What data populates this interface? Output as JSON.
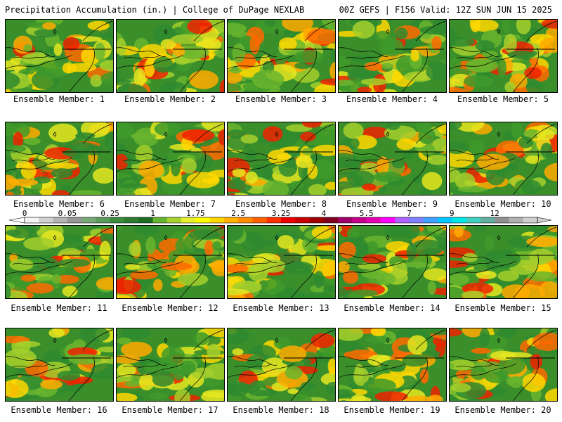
{
  "header": {
    "title_left": "Precipitation Accumulation (in.) | College of DuPage NEXLAB",
    "title_right": "00Z GEFS | F156 Valid: 12Z SUN JUN 15 2025"
  },
  "members": [
    {
      "label": "Ensemble Member: 1"
    },
    {
      "label": "Ensemble Member: 2"
    },
    {
      "label": "Ensemble Member: 3"
    },
    {
      "label": "Ensemble Member: 4"
    },
    {
      "label": "Ensemble Member: 5"
    },
    {
      "label": "Ensemble Member: 6"
    },
    {
      "label": "Ensemble Member: 7"
    },
    {
      "label": "Ensemble Member: 8"
    },
    {
      "label": "Ensemble Member: 9"
    },
    {
      "label": "Ensemble Member: 10"
    },
    {
      "label": "Ensemble Member: 11"
    },
    {
      "label": "Ensemble Member: 12"
    },
    {
      "label": "Ensemble Member: 13"
    },
    {
      "label": "Ensemble Member: 14"
    },
    {
      "label": "Ensemble Member: 15"
    },
    {
      "label": "Ensemble Member: 16"
    },
    {
      "label": "Ensemble Member: 17"
    },
    {
      "label": "Ensemble Member: 18"
    },
    {
      "label": "Ensemble Member: 19"
    },
    {
      "label": "Ensemble Member: 20"
    }
  ],
  "colorbar": {
    "tick_labels": [
      "0",
      "0.05",
      "0.25",
      "1",
      "1.75",
      "2.5",
      "3.25",
      "4",
      "5.5",
      "7",
      "9",
      "12"
    ],
    "colors": [
      "#f4f4f4",
      "#d2d2d2",
      "#b4b4b4",
      "#969696",
      "#78a878",
      "#5a9a5a",
      "#3c8c3c",
      "#2e7d32",
      "#1f6f23",
      "#65b32e",
      "#a6d22e",
      "#e8f02e",
      "#ffff00",
      "#ffd700",
      "#ffb000",
      "#ff8c00",
      "#ff6000",
      "#ff3000",
      "#ee0000",
      "#c80000",
      "#a00000",
      "#800020",
      "#a0006a",
      "#c8008c",
      "#e800b4",
      "#ff00ff",
      "#b060ff",
      "#8080ff",
      "#40a0ff",
      "#00c8ff",
      "#00e8e8",
      "#40d0c0",
      "#60b0a0",
      "#909090",
      "#b0b0b0",
      "#cfcfcf"
    ]
  }
}
